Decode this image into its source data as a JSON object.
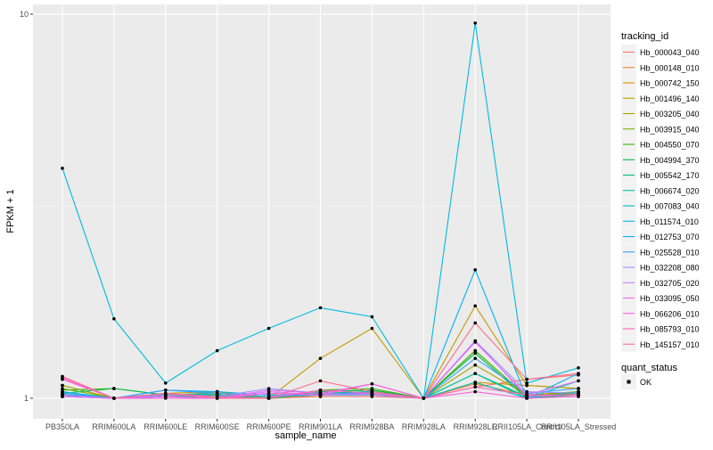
{
  "chart_data": {
    "type": "line",
    "xlabel": "sample_name",
    "ylabel": "FPKM + 1",
    "y_scale": "log10",
    "ylim": [
      0.884,
      10.6
    ],
    "y_ticks": [
      1,
      10
    ],
    "y_tick_labels": [
      "1",
      "10"
    ],
    "grid": true,
    "legend_position": "right",
    "legend_title": "tracking_id",
    "shape_legend_title": "quant_status",
    "shape_legend_entries": [
      "OK"
    ],
    "categories": [
      "PB350LA",
      "RRIM600LA",
      "RRIM600LE",
      "RRIM600SE",
      "RRIM600PE",
      "RRIM901LA",
      "RRIM928BA",
      "RRIM928LA",
      "RRIM928LE",
      "RRII105LA_Control",
      "RRII105LA_Stressed"
    ],
    "series": [
      {
        "name": "Hb_000043_040",
        "color": "#F8766D",
        "values": [
          1.02,
          1,
          1.01,
          1.02,
          1,
          1.01,
          1.01,
          1,
          1.07,
          1.12,
          1.15
        ]
      },
      {
        "name": "Hb_000148_010",
        "color": "#EA8331",
        "values": [
          1.03,
          1,
          1.02,
          1.03,
          1,
          1.02,
          1.02,
          1,
          1.09,
          1.02,
          1.03
        ]
      },
      {
        "name": "Hb_000742_150",
        "color": "#D89000",
        "values": [
          1.01,
          1,
          1.01,
          1.04,
          1,
          1.02,
          1.03,
          1,
          1.1,
          1.08,
          1.06
        ]
      },
      {
        "name": "Hb_001496_140",
        "color": "#C09B00",
        "values": [
          1.08,
          1,
          1.03,
          1.04,
          1,
          1.27,
          1.52,
          1,
          1.74,
          1.08,
          1.06
        ]
      },
      {
        "name": "Hb_003205_040",
        "color": "#A3A500",
        "values": [
          1.08,
          1,
          1.02,
          1.02,
          1,
          1.03,
          1.04,
          1,
          1.22,
          1.02,
          1.04
        ]
      },
      {
        "name": "Hb_003915_040",
        "color": "#7CAE00",
        "values": [
          1.06,
          1,
          1.02,
          1.02,
          1,
          1.04,
          1.05,
          1,
          1.33,
          1.01,
          1.04
        ]
      },
      {
        "name": "Hb_004550_070",
        "color": "#39B600",
        "values": [
          1.05,
          1.06,
          1.02,
          1.02,
          1,
          1.05,
          1.06,
          1,
          1.33,
          1.01,
          1.03
        ]
      },
      {
        "name": "Hb_004994_370",
        "color": "#00BB4E",
        "values": [
          1.03,
          1.06,
          1.02,
          1.01,
          1,
          1.04,
          1.05,
          1,
          1.31,
          1.0,
          1.02
        ]
      },
      {
        "name": "Hb_005542_170",
        "color": "#00BF7D",
        "values": [
          1.02,
          1,
          1.01,
          1.01,
          1,
          1.03,
          1.03,
          1,
          1.16,
          1.01,
          1.02
        ]
      },
      {
        "name": "Hb_006674_020",
        "color": "#00C1A3",
        "values": [
          1.02,
          1,
          1.02,
          1.02,
          1,
          1.03,
          1.04,
          1,
          1.16,
          1.0,
          1.04
        ]
      },
      {
        "name": "Hb_007083_040",
        "color": "#00BFC4",
        "values": [
          1.02,
          1,
          1.02,
          1.03,
          1.01,
          1.02,
          1.03,
          1,
          1.1,
          1.0,
          1.11
        ]
      },
      {
        "name": "Hb_011574_010",
        "color": "#00BAE0",
        "values": [
          3.97,
          1.61,
          1.095,
          1.33,
          1.52,
          1.72,
          1.63,
          1,
          9.48,
          1.095,
          1.2
        ]
      },
      {
        "name": "Hb_012753_070",
        "color": "#00B0F6",
        "values": [
          1.04,
          1,
          1.05,
          1.04,
          1.02,
          1.02,
          1.04,
          1,
          2.16,
          1.0,
          1.16
        ]
      },
      {
        "name": "Hb_025528_010",
        "color": "#35A2FF",
        "values": [
          1.03,
          1,
          1.05,
          1.03,
          1.01,
          1.02,
          1.02,
          1,
          1.27,
          1.03,
          1.06
        ]
      },
      {
        "name": "Hb_032208_080",
        "color": "#9590FF",
        "values": [
          1.02,
          1,
          1.02,
          1.01,
          1.06,
          1.03,
          1.02,
          1,
          1.41,
          1.04,
          1.03
        ]
      },
      {
        "name": "Hb_032705_020",
        "color": "#C77CFF",
        "values": [
          1.01,
          1,
          1.01,
          1.0,
          1.04,
          1.02,
          1.03,
          1,
          1.41,
          1.01,
          1.02
        ]
      },
      {
        "name": "Hb_033095_050",
        "color": "#E76BF3",
        "values": [
          1.01,
          1,
          1.01,
          1.0,
          1.05,
          1.03,
          1.09,
          1,
          1.4,
          1.02,
          1.11
        ]
      },
      {
        "name": "Hb_066206_010",
        "color": "#FA62DB",
        "values": [
          1.12,
          1,
          1.0,
          1.0,
          1.03,
          1.02,
          1.09,
          1,
          1.04,
          1.0,
          1.01
        ]
      },
      {
        "name": "Hb_085793_010",
        "color": "#FF62BC",
        "values": [
          1.13,
          1,
          1.03,
          1.01,
          1.0,
          1.05,
          1.03,
          1,
          1.07,
          1.02,
          1.02
        ]
      },
      {
        "name": "Hb_145157_010",
        "color": "#FF6C91",
        "values": [
          1.14,
          1,
          1.03,
          1.0,
          1.0,
          1.11,
          1.04,
          1,
          1.57,
          1.12,
          1.16
        ]
      }
    ]
  }
}
